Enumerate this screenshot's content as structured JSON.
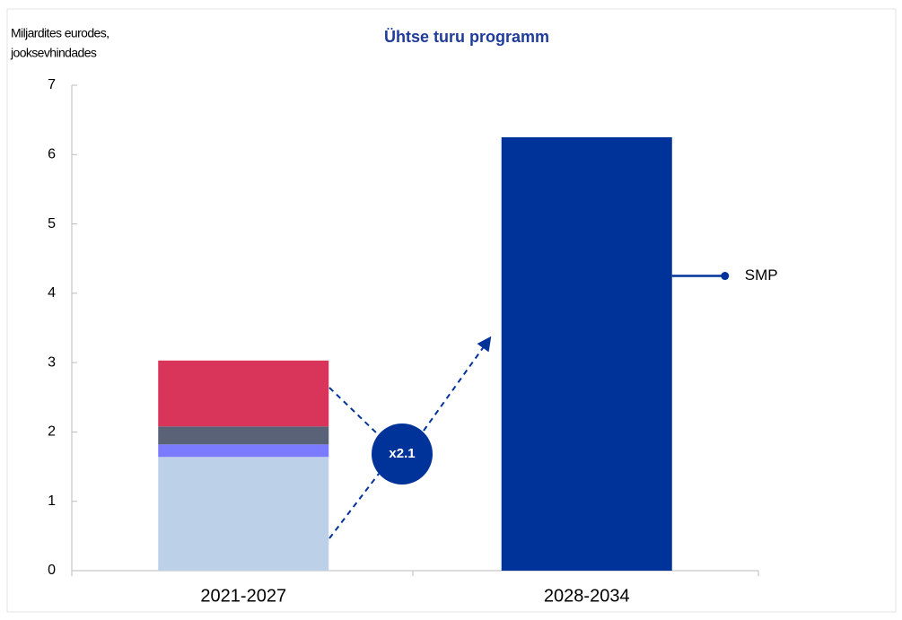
{
  "chart_data": {
    "type": "bar",
    "stacked": true,
    "title": "Ühtse turu programm",
    "ylabel": [
      "Miljardites eurodes,",
      "jooksevhindades"
    ],
    "categories": [
      "2021-2027",
      "2028-2034"
    ],
    "series": [
      {
        "color": "#bcd0e8",
        "values": [
          1.64,
          null
        ]
      },
      {
        "color": "#7b7bff",
        "values": [
          0.18,
          null
        ]
      },
      {
        "color": "#5a6277",
        "values": [
          0.26,
          null
        ]
      },
      {
        "color": "#d9345a",
        "values": [
          0.95,
          null
        ]
      },
      {
        "name": "SMP",
        "color": "#003399",
        "values": [
          null,
          6.25
        ]
      }
    ],
    "annotation": "x2.1",
    "ylim": [
      0,
      7
    ],
    "yticks": [
      0,
      1,
      2,
      3,
      4,
      5,
      6,
      7
    ]
  }
}
